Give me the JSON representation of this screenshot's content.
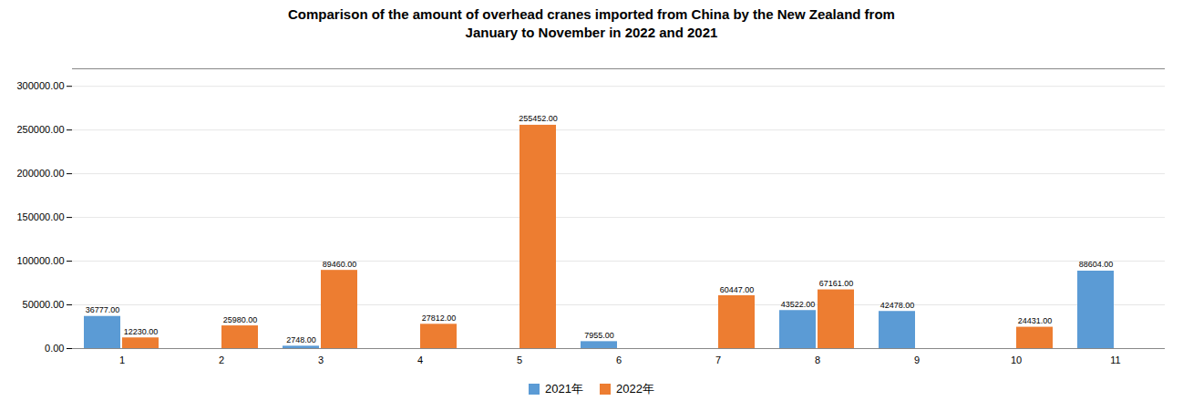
{
  "chart_data": {
    "type": "bar",
    "title": "Comparison of the amount of overhead cranes imported from China by the New Zealand from\nJanuary to November in 2022 and 2021",
    "categories": [
      1,
      2,
      3,
      4,
      5,
      6,
      7,
      8,
      9,
      10,
      11
    ],
    "series": [
      {
        "name": "2021年",
        "color": "#5b9bd5",
        "values": [
          36777,
          0,
          2748,
          0,
          0,
          7955,
          0,
          43522,
          42478,
          0,
          88604
        ],
        "value_labels": [
          "36777.00",
          null,
          "2748.00",
          null,
          null,
          "7955.00",
          null,
          "43522.00",
          "42478.00",
          null,
          "88604.00"
        ]
      },
      {
        "name": "2022年",
        "color": "#ed7d31",
        "values": [
          12230,
          25980,
          89460,
          27812,
          255452,
          0,
          60447,
          67161,
          0,
          24431,
          0
        ],
        "value_labels": [
          "12230.00",
          "25980.00",
          "89460.00",
          "27812.00",
          "255452.00",
          null,
          "60447.00",
          "67161.00",
          null,
          "24431.00",
          null
        ]
      }
    ],
    "ylim": [
      0,
      320000
    ],
    "yticks": [
      {
        "value": 0,
        "label": "0.00"
      },
      {
        "value": 50000,
        "label": "50000.00"
      },
      {
        "value": 100000,
        "label": "100000.00"
      },
      {
        "value": 150000,
        "label": "150000.00"
      },
      {
        "value": 200000,
        "label": "200000.00"
      },
      {
        "value": 250000,
        "label": "250000.00"
      },
      {
        "value": 300000,
        "label": "300000.00"
      }
    ],
    "grid": true,
    "legend": "bottom",
    "data_labels": true
  }
}
